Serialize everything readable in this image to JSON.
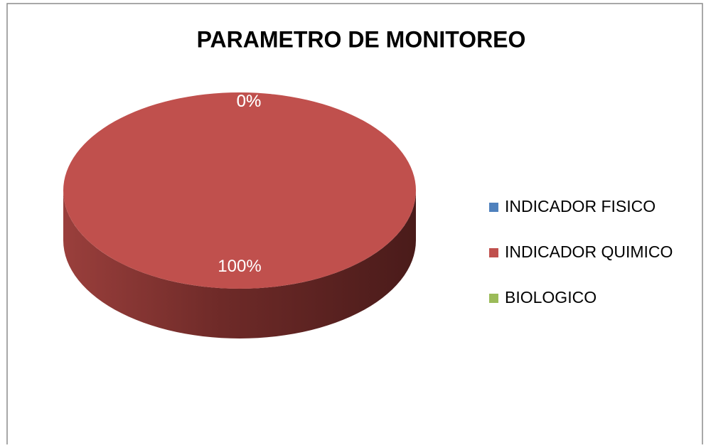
{
  "chart_data": {
    "type": "pie3d",
    "title": "PARAMETRO DE MONITOREO",
    "categories": [
      "INDICADOR FISICO",
      "INDICADOR QUIMICO",
      "BIOLOGICO"
    ],
    "values": [
      0,
      100,
      0
    ],
    "value_labels": [
      "0%",
      "100%",
      "0%"
    ],
    "colors": [
      "#4f81bd",
      "#c0504d",
      "#9bbb59"
    ],
    "legend": "right"
  }
}
